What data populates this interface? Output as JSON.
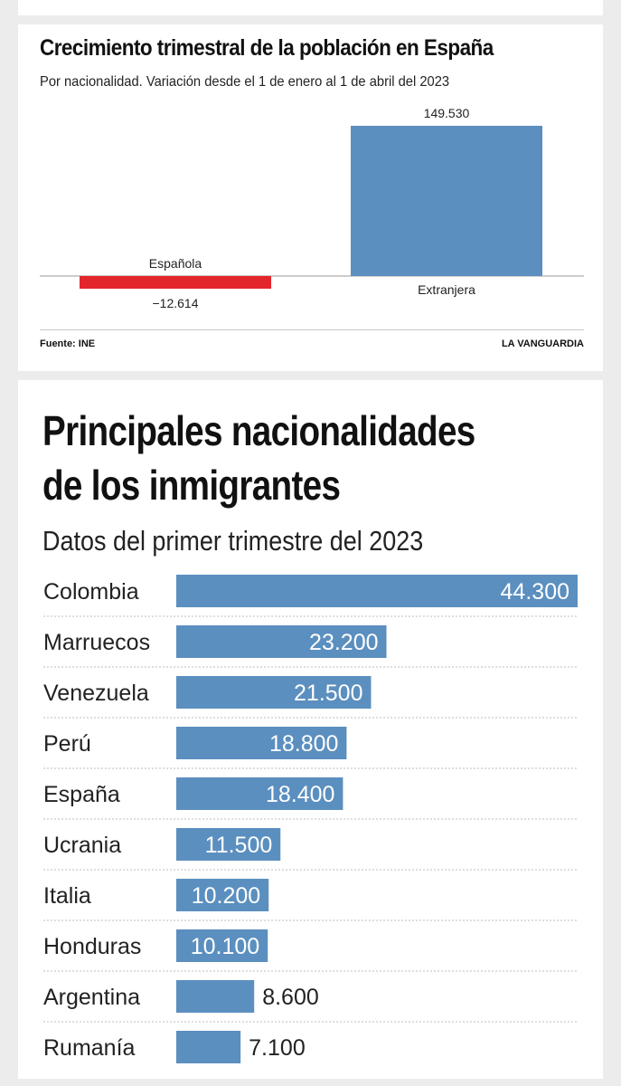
{
  "colors": {
    "bar_positive": "#5b8fbf",
    "bar_negative": "#e3262b",
    "page_background": "#ececec",
    "card_background": "#ffffff"
  },
  "chart_top": {
    "title": "Crecimiento trimestral de la población en España",
    "subtitle": "Por nacionalidad. Variación desde el 1 de enero al 1 de abril del 2023",
    "source": "Fuente: INE",
    "brand": "LA VANGUARDIA"
  },
  "chart_bottom": {
    "title_line1": "Principales nacionalidades",
    "title_line2": "de los inmigrantes",
    "subtitle": "Datos del primer trimestre del 2023"
  },
  "chart_data": [
    {
      "type": "bar",
      "title": "Crecimiento trimestral de la población en España",
      "subtitle": "Por nacionalidad. Variación desde el 1 de enero al 1 de abril del 2023",
      "categories": [
        "Española",
        "Extranjera"
      ],
      "values": [
        -12614,
        149530
      ],
      "value_labels": [
        "−12.614",
        "149.530"
      ],
      "grid": false,
      "legend": "none"
    },
    {
      "type": "bar",
      "orientation": "horizontal",
      "title": "Principales nacionalidades de los inmigrantes",
      "subtitle": "Datos del primer trimestre del 2023",
      "categories": [
        "Colombia",
        "Marruecos",
        "Venezuela",
        "Perú",
        "España",
        "Ucrania",
        "Italia",
        "Honduras",
        "Argentina",
        "Rumanía"
      ],
      "values": [
        44300,
        23200,
        21500,
        18800,
        18400,
        11500,
        10200,
        10100,
        8600,
        7100
      ],
      "value_labels": [
        "44.300",
        "23.200",
        "21.500",
        "18.800",
        "18.400",
        "11.500",
        "10.200",
        "10.100",
        "8.600",
        "7.100"
      ],
      "grid": false,
      "legend": "none"
    }
  ]
}
